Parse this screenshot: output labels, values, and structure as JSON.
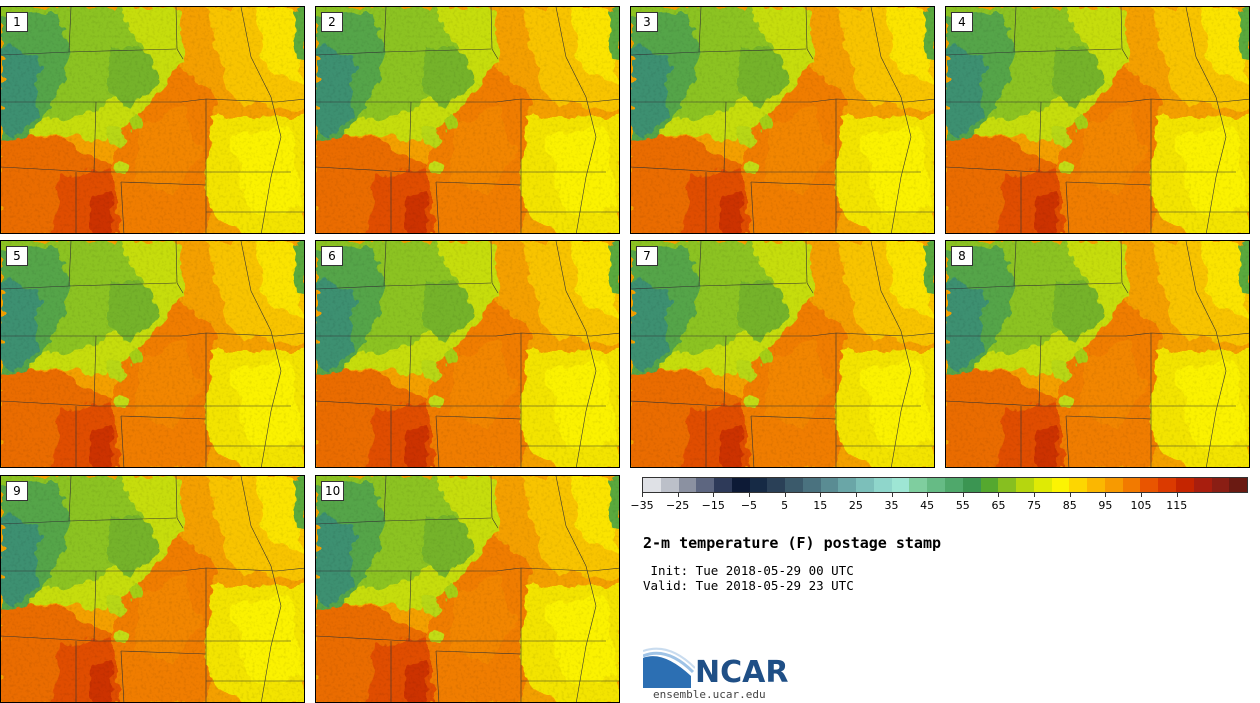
{
  "panels": [
    "1",
    "2",
    "3",
    "4",
    "5",
    "6",
    "7",
    "8",
    "9",
    "10"
  ],
  "colorbar": {
    "colors": [
      "#dfe1e6",
      "#bcc0c9",
      "#8b91a1",
      "#5d6680",
      "#2e3a59",
      "#0d1a36",
      "#162a45",
      "#2a4057",
      "#3b5a6b",
      "#4a727f",
      "#5a8c93",
      "#6aa6a7",
      "#7cbfba",
      "#8fd6cb",
      "#9ee6d4",
      "#7fce9f",
      "#66bb85",
      "#4fa86b",
      "#3b9552",
      "#55a82f",
      "#87bf20",
      "#b6d60f",
      "#dfea05",
      "#fcf403",
      "#fdd601",
      "#fbb701",
      "#f79a01",
      "#f27a00",
      "#e95500",
      "#db3a00",
      "#c52500",
      "#a81e0e",
      "#8a1e14",
      "#6a1a12"
    ],
    "tick_labels": [
      "−35",
      "−25",
      "−15",
      "−5",
      "5",
      "15",
      "25",
      "35",
      "45",
      "55",
      "65",
      "75",
      "85",
      "95",
      "105",
      "115"
    ],
    "tick_values": [
      -35,
      -25,
      -15,
      -5,
      5,
      15,
      25,
      35,
      45,
      55,
      65,
      75,
      85,
      95,
      105,
      115
    ],
    "min": -35,
    "max": 135,
    "unit": "F"
  },
  "title": "2-m temperature (F) postage stamp",
  "init": " Init: Tue 2018-05-29 00 UTC",
  "valid": "Valid: Tue 2018-05-29 23 UTC",
  "logo": {
    "text": "NCAR",
    "site": "ensemble.ucar.edu",
    "color": "#1f4f86"
  },
  "map_colors": {
    "cold_green": "#3f9a55",
    "green": "#7cbf2a",
    "lime": "#c3dc12",
    "yellow": "#f6ef05",
    "amber": "#f9c800",
    "orange": "#f39200",
    "deep_orange": "#e96a00",
    "red_orange": "#d94700"
  }
}
